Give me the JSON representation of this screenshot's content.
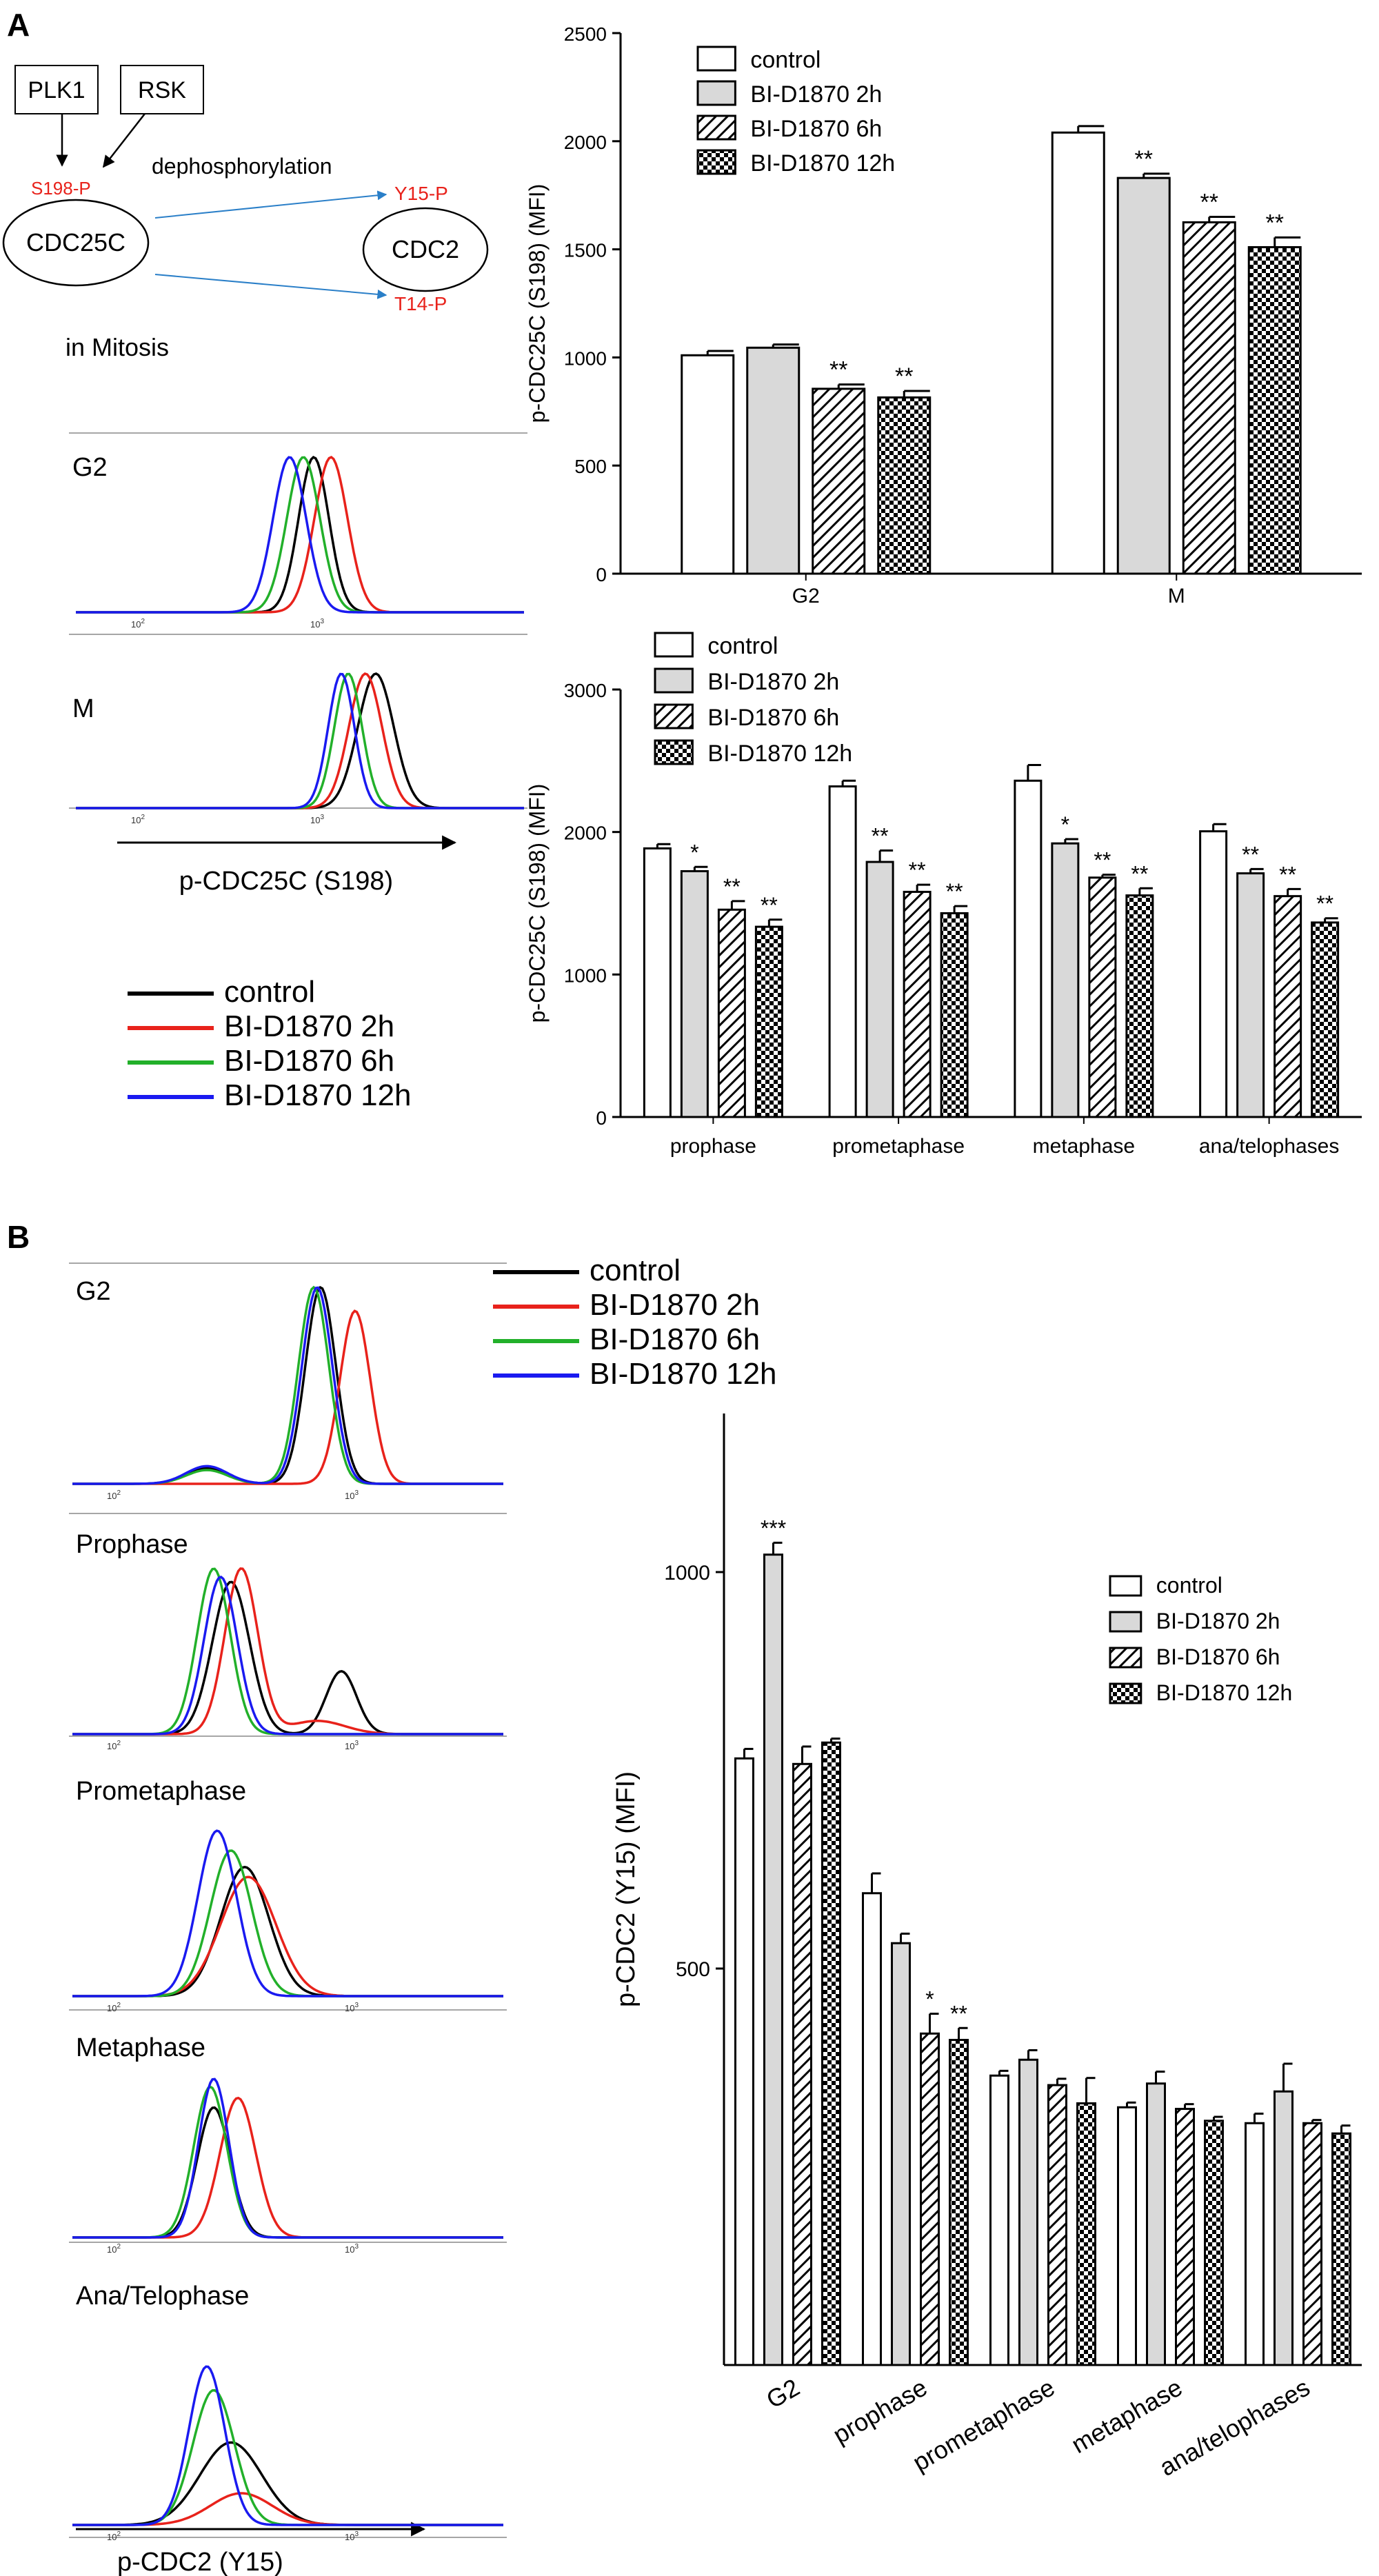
{
  "panels": {
    "a_label": "A",
    "b_label": "B"
  },
  "diagram": {
    "plk1": "PLK1",
    "rsk": "RSK",
    "dephos": "dephosphorylation",
    "s198": "S198-P",
    "cdc25c": "CDC25C",
    "cdc2": "CDC2",
    "y15": "Y15-P",
    "t14": "T14-P",
    "mitosis": "in Mitosis"
  },
  "histA": {
    "g2": "G2",
    "m": "M",
    "tick": "10",
    "tick_exp2": "2",
    "tick_exp3": "3",
    "xlabel": "p-CDC25C (S198)"
  },
  "legend_lines": {
    "items": [
      {
        "label": "control",
        "color": "#000000"
      },
      {
        "label": "BI-D1870 2h",
        "color": "#e8221b"
      },
      {
        "label": "BI-D1870 6h",
        "color": "#22b02a"
      },
      {
        "label": "BI-D1870 12h",
        "color": "#1a1af0"
      }
    ]
  },
  "histB": {
    "g2": "G2",
    "prophase": "Prophase",
    "prometaphase": "Prometaphase",
    "metaphase": "Metaphase",
    "anatelo": "Ana/Telophase",
    "tick": "10",
    "tick_exp2": "2",
    "tick_exp3": "3",
    "xlabel": "p-CDC2 (Y15)"
  },
  "chart_data": [
    {
      "type": "bar",
      "ylabel": "p-CDC25C (S198) (MFI)",
      "ylim": [
        0,
        2500
      ],
      "yticks": [
        "0",
        "500",
        "1000",
        "1500",
        "2000",
        "2500"
      ],
      "categories": [
        "G2",
        "M"
      ],
      "legend": [
        "control",
        "BI-D1870 2h",
        "BI-D1870 6h",
        "BI-D1870 12h"
      ],
      "series": [
        {
          "name": "control",
          "values": [
            1010,
            2040
          ],
          "errors": [
            20,
            30
          ]
        },
        {
          "name": "BI-D1870 2h",
          "values": [
            1045,
            1830
          ],
          "errors": [
            15,
            20
          ]
        },
        {
          "name": "BI-D1870 6h",
          "values": [
            855,
            1625
          ],
          "errors": [
            20,
            25
          ]
        },
        {
          "name": "BI-D1870 12h",
          "values": [
            815,
            1510
          ],
          "errors": [
            30,
            45
          ]
        }
      ],
      "significance": [
        [
          "",
          "",
          "**",
          "**"
        ],
        [
          "",
          "**",
          "**",
          "**"
        ]
      ]
    },
    {
      "type": "bar",
      "ylabel": "p-CDC25C (S198) (MFI)",
      "ylim": [
        0,
        3000
      ],
      "yticks": [
        "0",
        "1000",
        "2000",
        "3000"
      ],
      "categories": [
        "prophase",
        "prometaphase",
        "metaphase",
        "ana/telophases"
      ],
      "legend": [
        "control",
        "BI-D1870 2h",
        "BI-D1870 6h",
        "BI-D1870 12h"
      ],
      "series": [
        {
          "name": "control",
          "values": [
            1885,
            2320,
            2360,
            2005
          ],
          "errors": [
            30,
            40,
            110,
            50
          ]
        },
        {
          "name": "BI-D1870 2h",
          "values": [
            1725,
            1790,
            1920,
            1710
          ],
          "errors": [
            30,
            80,
            30,
            30
          ]
        },
        {
          "name": "BI-D1870 6h",
          "values": [
            1455,
            1580,
            1680,
            1550
          ],
          "errors": [
            60,
            50,
            20,
            50
          ]
        },
        {
          "name": "BI-D1870 12h",
          "values": [
            1335,
            1430,
            1555,
            1365
          ],
          "errors": [
            50,
            50,
            50,
            30
          ]
        }
      ],
      "significance": [
        [
          "",
          "*",
          "**",
          "**"
        ],
        [
          "",
          "**",
          "**",
          "**"
        ],
        [
          "",
          "*",
          "**",
          "**"
        ],
        [
          "",
          "**",
          "**",
          "**"
        ]
      ]
    },
    {
      "type": "bar",
      "ylabel": "p-CDC2 (Y15) (MFI)",
      "ylim": [
        0,
        1200
      ],
      "yticks": [
        "500",
        "1000"
      ],
      "categories": [
        "G2",
        "prophase",
        "prometaphase",
        "metaphase",
        "ana/telophases"
      ],
      "legend": [
        "control",
        "BI-D1870 2h",
        "BI-D1870 6h",
        "BI-D1870 12h"
      ],
      "series": [
        {
          "name": "control",
          "values": [
            765,
            595,
            365,
            325,
            305
          ],
          "errors": [
            12,
            25,
            6,
            6,
            12
          ]
        },
        {
          "name": "BI-D1870 2h",
          "values": [
            1022,
            532,
            385,
            355,
            345
          ],
          "errors": [
            15,
            12,
            12,
            15,
            35
          ]
        },
        {
          "name": "BI-D1870 6h",
          "values": [
            758,
            418,
            353,
            323,
            305
          ],
          "errors": [
            22,
            25,
            8,
            6,
            4
          ]
        },
        {
          "name": "BI-D1870 12h",
          "values": [
            785,
            410,
            330,
            308,
            292
          ],
          "errors": [
            5,
            15,
            32,
            5,
            10
          ]
        }
      ],
      "significance": [
        [
          "",
          "***",
          "",
          ""
        ],
        [
          "",
          "",
          "*",
          "**"
        ],
        [
          "",
          "",
          "",
          ""
        ],
        [
          "",
          "",
          "",
          ""
        ],
        [
          "",
          "",
          "",
          ""
        ]
      ]
    }
  ]
}
